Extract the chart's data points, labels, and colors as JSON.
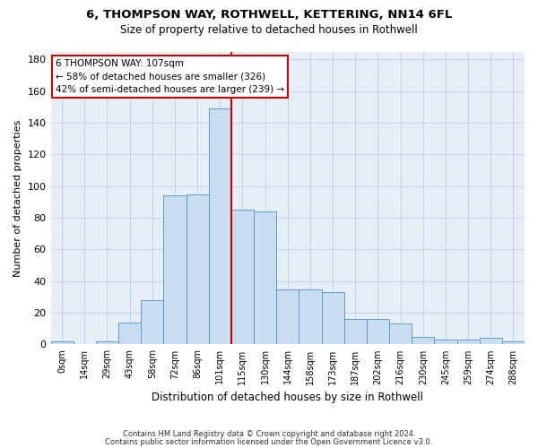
{
  "title1": "6, THOMPSON WAY, ROTHWELL, KETTERING, NN14 6FL",
  "title2": "Size of property relative to detached houses in Rothwell",
  "xlabel": "Distribution of detached houses by size in Rothwell",
  "ylabel": "Number of detached properties",
  "footnote1": "Contains HM Land Registry data © Crown copyright and database right 2024.",
  "footnote2": "Contains public sector information licensed under the Open Government Licence v3.0.",
  "bin_labels": [
    "0sqm",
    "14sqm",
    "29sqm",
    "43sqm",
    "58sqm",
    "72sqm",
    "86sqm",
    "101sqm",
    "115sqm",
    "130sqm",
    "144sqm",
    "158sqm",
    "173sqm",
    "187sqm",
    "202sqm",
    "216sqm",
    "230sqm",
    "245sqm",
    "259sqm",
    "274sqm",
    "288sqm"
  ],
  "bar_heights": [
    2,
    0,
    2,
    14,
    28,
    94,
    95,
    149,
    85,
    84,
    35,
    35,
    33,
    16,
    16,
    13,
    5,
    3,
    3,
    4,
    2
  ],
  "bar_color": "#c9ddf1",
  "bar_edge_color": "#5b9bd5",
  "grid_color": "#c8d4e8",
  "background_color": "#e8eef8",
  "vline_x": 7.5,
  "annotation_text1": "6 THOMPSON WAY: 107sqm",
  "annotation_text2": "← 58% of detached houses are smaller (326)",
  "annotation_text3": "42% of semi-detached houses are larger (239) →",
  "annotation_box_color": "#ffffff",
  "annotation_border_color": "#cc0000",
  "vline_color": "#cc0000",
  "ylim": [
    0,
    185
  ],
  "yticks": [
    0,
    20,
    40,
    60,
    80,
    100,
    120,
    140,
    160,
    180
  ]
}
